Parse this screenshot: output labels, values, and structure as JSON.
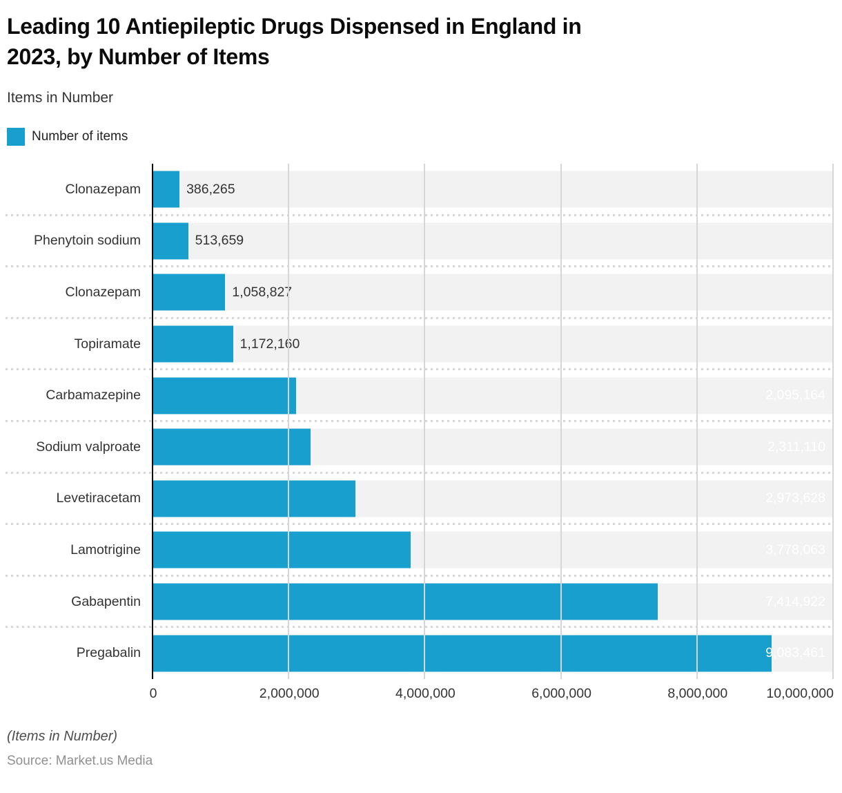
{
  "header": {
    "title": "Leading 10 Antiepileptic Drugs Dispensed in England in\n2023, by Number of Items",
    "subtitle": "Items in Number"
  },
  "legend": {
    "label": "Number of items",
    "color": "#199FCD"
  },
  "chart_data": {
    "type": "bar",
    "orientation": "horizontal",
    "title": "Leading 10 Antiepileptic Drugs Dispensed in England in 2023, by Number of Items",
    "series_name": "Number of items",
    "categories": [
      "Clonazepam",
      "Phenytoin sodium",
      "Clonazepam",
      "Topiramate",
      "Carbamazepine",
      "Sodium valproate",
      "Levetiracetam",
      "Lamotrigine",
      "Gabapentin",
      "Pregabalin"
    ],
    "values": [
      386265,
      513659,
      1058827,
      1172160,
      2095164,
      2311110,
      2973628,
      3778063,
      7414922,
      9083461
    ],
    "value_labels": [
      "386,265",
      "513,659",
      "1,058,827",
      "1,172,160",
      "2,095,164",
      "2,311,110",
      "2,973,628",
      "3,778,063",
      "7,414,922",
      "9,083,461"
    ],
    "label_position": [
      "outside",
      "outside",
      "outside",
      "outside",
      "inside",
      "inside",
      "inside",
      "inside",
      "inside",
      "inside"
    ],
    "xlim": [
      0,
      10000000
    ],
    "x_ticks": [
      "0",
      "2,000,000",
      "4,000,000",
      "6,000,000",
      "8,000,000",
      "10,000,000"
    ],
    "grid": true,
    "colors": {
      "bar": "#199FCD",
      "band": "#F2F2F2",
      "gridline": "#D6D6D6",
      "axis": "#050505"
    }
  },
  "footer": {
    "note": "(Items in Number)",
    "source": "Source: Market.us Media"
  }
}
